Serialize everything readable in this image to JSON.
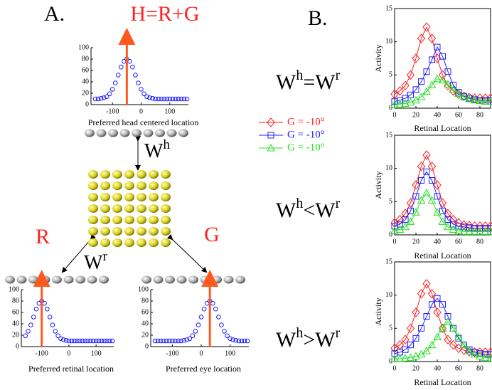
{
  "diagram": {
    "panel_a": "A.",
    "panel_b": "B.",
    "head_label": "H=R+G",
    "retinal_label": "R",
    "eye_label": "G",
    "wh": {
      "base": "W",
      "sup": "h"
    },
    "wr": {
      "base": "W",
      "sup": "r"
    }
  },
  "equations": [
    [
      {
        "text": "W"
      },
      {
        "text": "h",
        "sup": true
      },
      {
        "text": "=W"
      },
      {
        "text": "r",
        "sup": true
      }
    ],
    [
      {
        "text": "W"
      },
      {
        "text": "h",
        "sup": true
      },
      {
        "text": "<W"
      },
      {
        "text": "r",
        "sup": true
      }
    ],
    [
      {
        "text": "W"
      },
      {
        "text": "h",
        "sup": true
      },
      {
        "text": ">W"
      },
      {
        "text": "r",
        "sup": true
      }
    ]
  ],
  "chart_data": [
    {
      "type": "scatter",
      "x_label": "Preferred head centered location",
      "x": [
        -160,
        -150,
        -140,
        -130,
        -120,
        -110,
        -100,
        -90,
        -80,
        -70,
        -60,
        -50,
        -40,
        -30,
        -20,
        -10,
        0,
        10,
        20,
        30,
        40,
        50,
        60,
        70,
        80,
        90,
        100,
        110,
        120,
        130,
        140,
        150,
        160
      ],
      "series": [
        {
          "color": "#1a1aff",
          "marker": "circle",
          "values": [
            10,
            10,
            11,
            12,
            14,
            19,
            27,
            38,
            52,
            66,
            76,
            80,
            76,
            66,
            52,
            38,
            27,
            19,
            14,
            12,
            11,
            10,
            10,
            10,
            10,
            10,
            10,
            10,
            10,
            10,
            10,
            10,
            10
          ]
        }
      ],
      "vline": {
        "x": -50,
        "color": "#ff5a1e"
      },
      "xlim": [
        -175,
        165
      ],
      "xticks": [
        -100,
        0,
        100
      ],
      "ylim": [
        0,
        100
      ],
      "yticks": [
        0,
        20,
        40,
        60,
        80,
        100
      ]
    },
    {
      "type": "scatter",
      "x_label": "Preferred retinal  location",
      "x": [
        -160,
        -150,
        -140,
        -130,
        -120,
        -110,
        -100,
        -90,
        -80,
        -70,
        -60,
        -50,
        -40,
        -30,
        -20,
        -10,
        0,
        10,
        20,
        30,
        40,
        50,
        60,
        70,
        80,
        90,
        100,
        110,
        120,
        130,
        140,
        150,
        160
      ],
      "series": [
        {
          "color": "#1a1aff",
          "marker": "circle",
          "values": [
            19,
            27,
            38,
            52,
            66,
            76,
            80,
            76,
            66,
            52,
            38,
            27,
            19,
            14,
            12,
            11,
            10,
            10,
            10,
            10,
            10,
            10,
            10,
            10,
            10,
            10,
            10,
            10,
            10,
            10,
            10,
            10,
            10
          ]
        }
      ],
      "vline": {
        "x": -100,
        "color": "#ff5a1e"
      },
      "xlim": [
        -175,
        165
      ],
      "xticks": [
        -100,
        0,
        100
      ],
      "ylim": [
        0,
        100
      ],
      "yticks": [
        0,
        20,
        40,
        60,
        80,
        100
      ]
    },
    {
      "type": "scatter",
      "x_label": "Preferred eye location",
      "x": [
        -160,
        -150,
        -140,
        -130,
        -120,
        -110,
        -100,
        -90,
        -80,
        -70,
        -60,
        -50,
        -40,
        -30,
        -20,
        -10,
        0,
        10,
        20,
        30,
        40,
        50,
        60,
        70,
        80,
        90,
        100,
        110,
        120,
        130,
        140,
        150,
        160
      ],
      "series": [
        {
          "color": "#1a1aff",
          "marker": "circle",
          "values": [
            10,
            10,
            10,
            10,
            10,
            10,
            10,
            10,
            10,
            10,
            11,
            12,
            14,
            19,
            27,
            38,
            52,
            66,
            76,
            80,
            76,
            66,
            52,
            38,
            27,
            19,
            14,
            12,
            11,
            10,
            10,
            10,
            10
          ]
        }
      ],
      "vline": {
        "x": 30,
        "color": "#ff5a1e"
      },
      "xlim": [
        -175,
        165
      ],
      "xticks": [
        -100,
        0,
        100
      ],
      "ylim": [
        0,
        100
      ],
      "yticks": [
        0,
        20,
        40,
        60,
        80,
        100
      ]
    },
    {
      "type": "line",
      "x_label": "Retinal Location",
      "y_label": "Activity",
      "x": [
        0,
        5,
        10,
        15,
        20,
        25,
        30,
        35,
        40,
        45,
        50,
        55,
        60,
        65,
        70,
        75,
        80,
        85,
        90
      ],
      "series": [
        {
          "name": "G = -10°",
          "color": "#ff2020",
          "marker": "diamond",
          "values": [
            2.1,
            2.6,
            3.4,
            5,
            7.5,
            10.5,
            12.2,
            10.5,
            7.5,
            5,
            3.4,
            2.6,
            2.1,
            1.8,
            1.6,
            1.5,
            1.5,
            1.5,
            1.5
          ]
        },
        {
          "name": "G = -10°",
          "color": "#2020ff",
          "marker": "square",
          "values": [
            1,
            1.2,
            1.5,
            2,
            2.8,
            4,
            5.5,
            7.3,
            9.2,
            7.8,
            5.5,
            3.5,
            2.4,
            1.8,
            1.5,
            1.3,
            1.2,
            1.2,
            1.2
          ]
        },
        {
          "name": "G = -10°",
          "color": "#20e020",
          "marker": "triangle",
          "values": [
            0.5,
            0.6,
            0.7,
            0.9,
            1.2,
            1.7,
            2.5,
            3.5,
            4.4,
            4.2,
            3.6,
            2.8,
            2.2,
            1.7,
            1.4,
            1.2,
            1.1,
            1,
            1
          ]
        }
      ],
      "xlim": [
        0,
        90
      ],
      "xticks": [
        0,
        20,
        40,
        60,
        80
      ],
      "ylim": [
        0,
        15
      ],
      "yticks": [
        0,
        5,
        10,
        15
      ]
    },
    {
      "type": "line",
      "x_label": "Retinal Location",
      "y_label": "Activity",
      "x": [
        0,
        5,
        10,
        15,
        20,
        25,
        30,
        35,
        40,
        45,
        50,
        55,
        60,
        65,
        70,
        75,
        80,
        85,
        90
      ],
      "series": [
        {
          "color": "#ff2020",
          "marker": "diamond",
          "values": [
            1.8,
            2.3,
            3.2,
            4.8,
            7.5,
            10.3,
            12,
            10.3,
            7.5,
            4.8,
            3.2,
            2.3,
            1.8,
            1.5,
            1.4,
            1.3,
            1.3,
            1.3,
            1.3
          ]
        },
        {
          "color": "#2020ff",
          "marker": "square",
          "values": [
            1.3,
            1.6,
            2.3,
            3.6,
            5.8,
            8.2,
            9.5,
            8.2,
            5.8,
            3.6,
            2.3,
            1.6,
            1.3,
            1.2,
            1.1,
            1,
            1,
            1,
            1
          ]
        },
        {
          "color": "#20e020",
          "marker": "triangle",
          "values": [
            0.6,
            0.8,
            1.2,
            2,
            3.4,
            5.2,
            6.3,
            5.2,
            3.4,
            2,
            1.2,
            0.8,
            0.6,
            0.5,
            0.5,
            0.5,
            0.5,
            0.5,
            0.5
          ]
        }
      ],
      "xlim": [
        0,
        90
      ],
      "xticks": [
        0,
        20,
        40,
        60,
        80
      ],
      "ylim": [
        0,
        15
      ],
      "yticks": [
        0,
        5,
        10,
        15
      ]
    },
    {
      "type": "line",
      "x_label": "Retinal Location",
      "y_label": "Activity",
      "x": [
        0,
        5,
        10,
        15,
        20,
        25,
        30,
        35,
        40,
        45,
        50,
        55,
        60,
        65,
        70,
        75,
        80,
        85,
        90
      ],
      "series": [
        {
          "color": "#ff2020",
          "marker": "diamond",
          "values": [
            2,
            2.5,
            3.3,
            5,
            7.4,
            10.2,
            11.7,
            10.2,
            7.4,
            5,
            3.3,
            2.5,
            2,
            1.7,
            1.5,
            1.4,
            1.4,
            1.4,
            1.4
          ]
        },
        {
          "color": "#2020ff",
          "marker": "square",
          "values": [
            1.2,
            1.4,
            1.8,
            2.5,
            3.5,
            5,
            6.8,
            8.6,
            9.5,
            8.6,
            6.8,
            5,
            3.5,
            2.5,
            1.8,
            1.4,
            1.2,
            1.1,
            1.1
          ]
        },
        {
          "color": "#20e020",
          "marker": "triangle",
          "values": [
            0.4,
            0.4,
            0.5,
            0.6,
            0.8,
            1.1,
            1.6,
            2.5,
            3.7,
            5,
            6,
            5,
            3.7,
            2.5,
            1.6,
            1.1,
            0.8,
            0.6,
            0.5
          ]
        }
      ],
      "xlim": [
        0,
        90
      ],
      "xticks": [
        0,
        20,
        40,
        60,
        80
      ],
      "ylim": [
        0,
        15
      ],
      "yticks": [
        0,
        5,
        10,
        15
      ]
    }
  ]
}
